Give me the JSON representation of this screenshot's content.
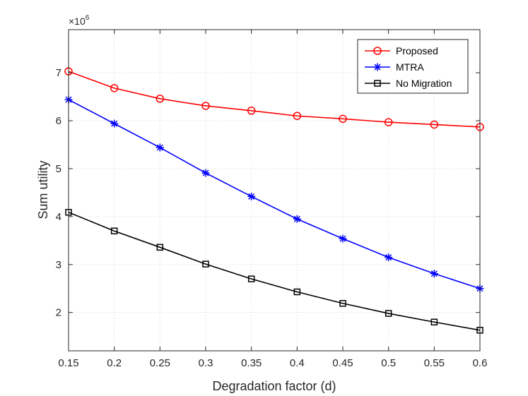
{
  "chart_data": {
    "type": "line",
    "xlabel": "Degradation factor (d)",
    "ylabel": "Sum utility",
    "y_exponent_label": "×10",
    "y_exponent_power": "6",
    "x": [
      0.15,
      0.2,
      0.25,
      0.3,
      0.35,
      0.4,
      0.45,
      0.5,
      0.55,
      0.6
    ],
    "x_tick_labels": [
      "0.15",
      "0.2",
      "0.25",
      "0.3",
      "0.35",
      "0.4",
      "0.45",
      "0.5",
      "0.55",
      "0.6"
    ],
    "xlim": [
      0.15,
      0.6
    ],
    "y_ticks": [
      2,
      3,
      4,
      5,
      6,
      7
    ],
    "y_tick_labels": [
      "2",
      "3",
      "4",
      "5",
      "6",
      "7"
    ],
    "ylim": [
      1.2,
      7.9
    ],
    "grid": true,
    "legend_position": "top-right",
    "series": [
      {
        "name": "Proposed",
        "color": "#ff0000",
        "marker": "circle",
        "values": [
          7.03,
          6.68,
          6.46,
          6.31,
          6.21,
          6.1,
          6.04,
          5.97,
          5.92,
          5.87
        ]
      },
      {
        "name": "MTRA",
        "color": "#0000ff",
        "marker": "asterisk",
        "values": [
          6.44,
          5.94,
          5.44,
          4.91,
          4.42,
          3.95,
          3.54,
          3.15,
          2.81,
          2.5
        ]
      },
      {
        "name": "No Migration",
        "color": "#000000",
        "marker": "square",
        "values": [
          4.09,
          3.7,
          3.36,
          3.01,
          2.7,
          2.43,
          2.19,
          1.98,
          1.8,
          1.63
        ]
      }
    ]
  }
}
